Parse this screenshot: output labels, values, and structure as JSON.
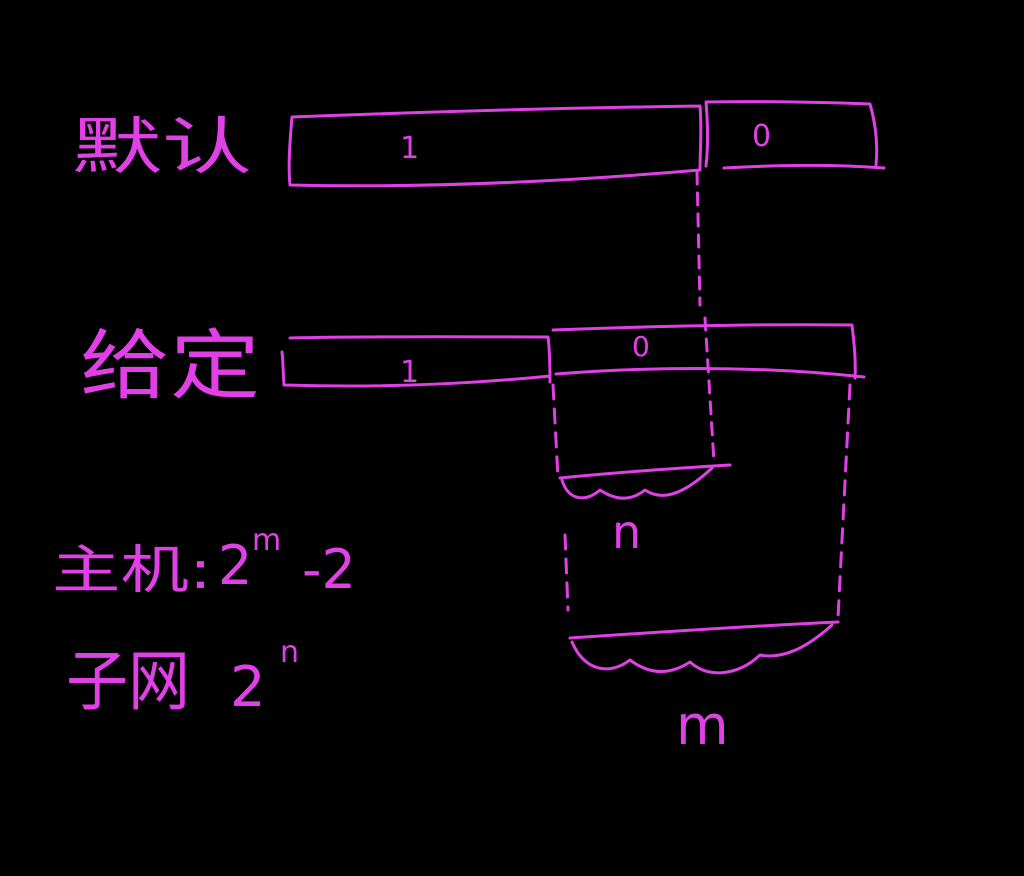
{
  "colors": {
    "background": "#000000",
    "ink": "#e040e6"
  },
  "rows": {
    "default": {
      "label": "默认",
      "ones_digit": "1",
      "zeros_digit": "0"
    },
    "given": {
      "label": "给定",
      "ones_digit": "1",
      "zeros_digit": "0"
    }
  },
  "braces": {
    "inner_label": "n",
    "outer_label": "m"
  },
  "formulas": {
    "hosts": {
      "label": "主机:",
      "base": "2",
      "exponent": "m",
      "suffix": "-2"
    },
    "subnets": {
      "label": "子网",
      "base": "2",
      "exponent": "n"
    }
  }
}
